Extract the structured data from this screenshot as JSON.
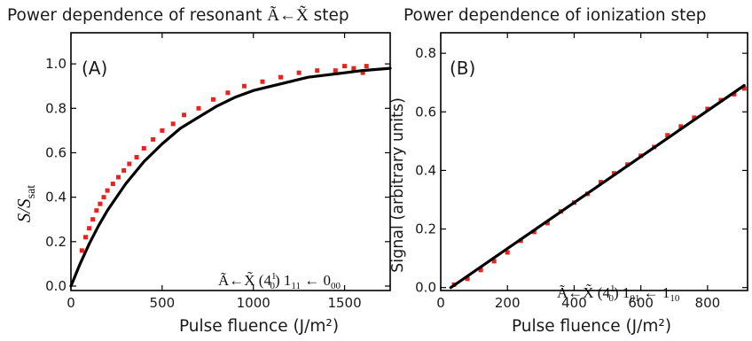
{
  "chart_data": [
    {
      "type": "scatter",
      "panel_label": "(A)",
      "title_parts": [
        "Power dependence of resonant ",
        "Ã←X̃",
        " step"
      ],
      "xlabel": "Pulse fluence (J/m²)",
      "ylabel": "S/S_sat",
      "ylabel_parts": {
        "main": "S/S",
        "sub": "sat"
      },
      "annotation": {
        "main": "Ã←X̃ (4",
        "sup": "1",
        "sub": "0",
        "rest": ") 1",
        "rest_sub": "11",
        "arrow": " ← 0",
        "arrow_sub": "00"
      },
      "xlim": [
        0,
        1750
      ],
      "ylim": [
        -0.02,
        1.14
      ],
      "xticks": [
        0,
        500,
        1000,
        1500
      ],
      "yticks": [
        0.0,
        0.2,
        0.4,
        0.6,
        0.8,
        1.0
      ],
      "x_tick_labels": [
        "0",
        "500",
        "1000",
        "1500"
      ],
      "y_tick_labels": [
        "0.0",
        "0.2",
        "0.4",
        "0.6",
        "0.8",
        "1.0"
      ],
      "series": [
        {
          "kind": "points",
          "color": "#e8221c",
          "points": [
            [
              60,
              0.16
            ],
            [
              80,
              0.22
            ],
            [
              100,
              0.26
            ],
            [
              120,
              0.3
            ],
            [
              140,
              0.34
            ],
            [
              160,
              0.37
            ],
            [
              180,
              0.4
            ],
            [
              200,
              0.43
            ],
            [
              230,
              0.46
            ],
            [
              260,
              0.49
            ],
            [
              290,
              0.52
            ],
            [
              320,
              0.55
            ],
            [
              360,
              0.58
            ],
            [
              400,
              0.62
            ],
            [
              450,
              0.66
            ],
            [
              500,
              0.7
            ],
            [
              560,
              0.73
            ],
            [
              620,
              0.77
            ],
            [
              700,
              0.8
            ],
            [
              780,
              0.84
            ],
            [
              860,
              0.87
            ],
            [
              950,
              0.9
            ],
            [
              1050,
              0.92
            ],
            [
              1150,
              0.94
            ],
            [
              1250,
              0.96
            ],
            [
              1350,
              0.97
            ],
            [
              1450,
              0.97
            ],
            [
              1500,
              0.99
            ],
            [
              1550,
              0.98
            ],
            [
              1600,
              0.96
            ],
            [
              1620,
              0.99
            ]
          ]
        },
        {
          "kind": "fit",
          "color": "#000000",
          "points": [
            [
              0,
              0.0
            ],
            [
              50,
              0.1
            ],
            [
              100,
              0.19
            ],
            [
              150,
              0.27
            ],
            [
              200,
              0.34
            ],
            [
              250,
              0.4
            ],
            [
              300,
              0.46
            ],
            [
              400,
              0.56
            ],
            [
              500,
              0.64
            ],
            [
              600,
              0.71
            ],
            [
              700,
              0.76
            ],
            [
              800,
              0.81
            ],
            [
              900,
              0.85
            ],
            [
              1000,
              0.88
            ],
            [
              1100,
              0.9
            ],
            [
              1200,
              0.92
            ],
            [
              1300,
              0.94
            ],
            [
              1400,
              0.95
            ],
            [
              1500,
              0.96
            ],
            [
              1600,
              0.97
            ],
            [
              1750,
              0.98
            ]
          ]
        }
      ]
    },
    {
      "type": "scatter",
      "panel_label": "(B)",
      "title": "Power dependence of ionization step",
      "xlabel": "Pulse fluence (J/m²)",
      "ylabel": "Signal (arbitrary units)",
      "annotation": {
        "main": "Ã←X̃ (4",
        "sup": "1",
        "sub": "0",
        "rest": ") 1",
        "rest_sub": "01",
        "arrow": " ← 1",
        "arrow_sub": "10"
      },
      "xlim": [
        0,
        920
      ],
      "ylim": [
        -0.01,
        0.87
      ],
      "xticks": [
        0,
        200,
        400,
        600,
        800
      ],
      "yticks": [
        0.0,
        0.2,
        0.4,
        0.6,
        0.8
      ],
      "x_tick_labels": [
        "0",
        "200",
        "400",
        "600",
        "800"
      ],
      "y_tick_labels": [
        "0.0",
        "0.2",
        "0.4",
        "0.6",
        "0.8"
      ],
      "series": [
        {
          "kind": "points",
          "color": "#e8221c",
          "points": [
            [
              40,
              0.01
            ],
            [
              80,
              0.03
            ],
            [
              120,
              0.06
            ],
            [
              160,
              0.09
            ],
            [
              200,
              0.12
            ],
            [
              240,
              0.16
            ],
            [
              280,
              0.19
            ],
            [
              320,
              0.22
            ],
            [
              360,
              0.26
            ],
            [
              400,
              0.29
            ],
            [
              440,
              0.32
            ],
            [
              480,
              0.36
            ],
            [
              520,
              0.39
            ],
            [
              560,
              0.42
            ],
            [
              600,
              0.45
            ],
            [
              640,
              0.48
            ],
            [
              680,
              0.52
            ],
            [
              720,
              0.55
            ],
            [
              760,
              0.58
            ],
            [
              800,
              0.61
            ],
            [
              840,
              0.64
            ],
            [
              880,
              0.66
            ],
            [
              910,
              0.68
            ]
          ]
        },
        {
          "kind": "fit",
          "color": "#000000",
          "points": [
            [
              30,
              0.0
            ],
            [
              910,
              0.69
            ]
          ]
        }
      ]
    }
  ]
}
